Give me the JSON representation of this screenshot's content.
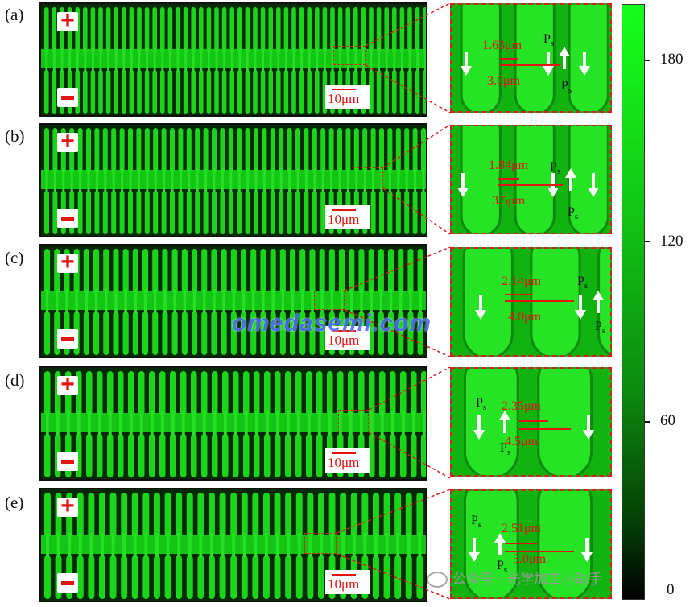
{
  "panels": [
    {
      "label": "(a)",
      "plus": "+",
      "minus": "−",
      "scale": "10μm",
      "meas_top": "1.63μm",
      "meas_bottom": "3.0μm",
      "ps": "P",
      "ps_sub": "s"
    },
    {
      "label": "(b)",
      "plus": "+",
      "minus": "−",
      "scale": "10μm",
      "meas_top": "1.84μm",
      "meas_bottom": "3.5μm",
      "ps": "P",
      "ps_sub": "s"
    },
    {
      "label": "(c)",
      "plus": "+",
      "minus": "−",
      "scale": "10μm",
      "meas_top": "2.14μm",
      "meas_bottom": "4.0μm",
      "ps": "P",
      "ps_sub": "s"
    },
    {
      "label": "(d)",
      "plus": "+",
      "minus": "−",
      "scale": "10μm",
      "meas_top": "2.35μm",
      "meas_bottom": "4.5μm",
      "ps": "P",
      "ps_sub": "s"
    },
    {
      "label": "(e)",
      "plus": "+",
      "minus": "−",
      "scale": "10μm",
      "meas_top": "2.51μm",
      "meas_bottom": "5.0μm",
      "ps": "P",
      "ps_sub": "s"
    }
  ],
  "colorbar": {
    "ticks": [
      "180",
      "120",
      "60",
      "0"
    ],
    "colors": {
      "top": "#17ff1c",
      "bottom": "#000000"
    }
  },
  "watermark": "omedasemi.com",
  "credit": "公众号 · 光学加工小助手",
  "colors": {
    "accent": "#e21414",
    "phase": "#17d517",
    "dark": "#0a3a0a"
  }
}
